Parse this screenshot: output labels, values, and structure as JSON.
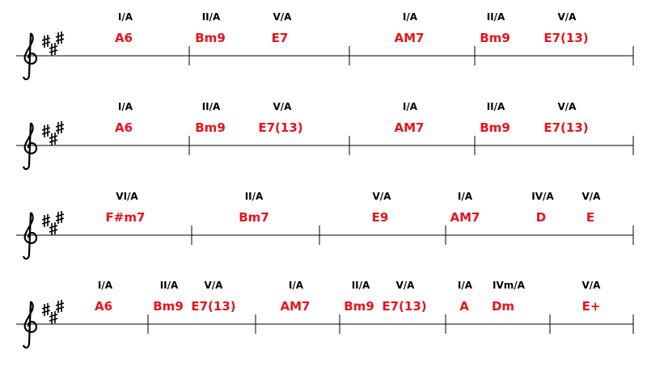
{
  "systems": [
    {
      "chords": [
        {
          "degree": "I/A",
          "symbol": "A6"
        },
        {
          "degree": "II/A",
          "symbol": "Bm9"
        },
        {
          "degree": "V/A",
          "symbol": "E7"
        },
        {
          "degree": "I/A",
          "symbol": "AM7"
        },
        {
          "degree": "II/A",
          "symbol": "Bm9"
        },
        {
          "degree": "V/A",
          "symbol": "E7(13)"
        }
      ]
    },
    {
      "chords": [
        {
          "degree": "I/A",
          "symbol": "A6"
        },
        {
          "degree": "II/A",
          "symbol": "Bm9"
        },
        {
          "degree": "V/A",
          "symbol": "E7(13)"
        },
        {
          "degree": "I/A",
          "symbol": "AM7"
        },
        {
          "degree": "II/A",
          "symbol": "Bm9"
        },
        {
          "degree": "V/A",
          "symbol": "E7(13)"
        }
      ]
    },
    {
      "chords": [
        {
          "degree": "VI/A",
          "symbol": "F#m7"
        },
        {
          "degree": "II/A",
          "symbol": "Bm7"
        },
        {
          "degree": "V/A",
          "symbol": "E9"
        },
        {
          "degree": "I/A",
          "symbol": "AM7"
        },
        {
          "degree": "IV/A",
          "symbol": "D"
        },
        {
          "degree": "V/A",
          "symbol": "E"
        }
      ]
    },
    {
      "chords": [
        {
          "degree": "I/A",
          "symbol": "A6"
        },
        {
          "degree": "II/A",
          "symbol": "Bm9"
        },
        {
          "degree": "V/A",
          "symbol": "E7(13)"
        },
        {
          "degree": "I/A",
          "symbol": "AM7"
        },
        {
          "degree": "II/A",
          "symbol": "Bm9"
        },
        {
          "degree": "V/A",
          "symbol": "E7(13)"
        },
        {
          "degree": "I/A",
          "symbol": "A"
        },
        {
          "degree": "IVm/A",
          "symbol": "Dm"
        },
        {
          "degree": "V/A",
          "symbol": "E+"
        }
      ]
    }
  ]
}
